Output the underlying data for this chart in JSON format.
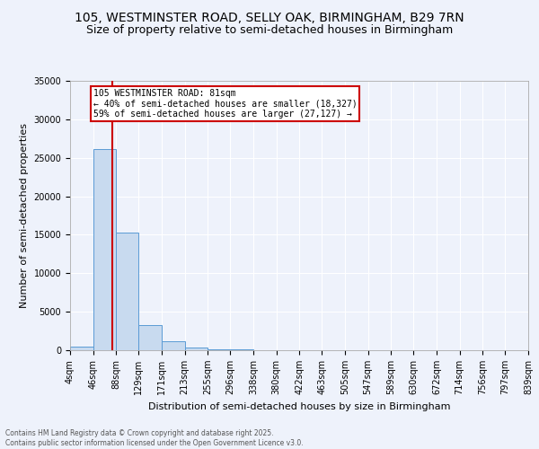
{
  "title_line1": "105, WESTMINSTER ROAD, SELLY OAK, BIRMINGHAM, B29 7RN",
  "title_line2": "Size of property relative to semi-detached houses in Birmingham",
  "xlabel": "Distribution of semi-detached houses by size in Birmingham",
  "ylabel": "Number of semi-detached properties",
  "bin_labels": [
    "4sqm",
    "46sqm",
    "88sqm",
    "129sqm",
    "171sqm",
    "213sqm",
    "255sqm",
    "296sqm",
    "338sqm",
    "380sqm",
    "422sqm",
    "463sqm",
    "505sqm",
    "547sqm",
    "589sqm",
    "630sqm",
    "672sqm",
    "714sqm",
    "756sqm",
    "797sqm",
    "839sqm"
  ],
  "bin_edges": [
    4,
    46,
    88,
    129,
    171,
    213,
    255,
    296,
    338,
    380,
    422,
    463,
    505,
    547,
    589,
    630,
    672,
    714,
    756,
    797,
    839
  ],
  "bar_heights": [
    500,
    26100,
    15300,
    3300,
    1200,
    400,
    150,
    80,
    50,
    30,
    20,
    15,
    10,
    8,
    5,
    4,
    3,
    2,
    2,
    1,
    1
  ],
  "bar_color": "#c8daef",
  "bar_edge_color": "#5b9bd5",
  "property_size": 81,
  "vline_color": "#cc0000",
  "annotation_text": "105 WESTMINSTER ROAD: 81sqm\n← 40% of semi-detached houses are smaller (18,327)\n59% of semi-detached houses are larger (27,127) →",
  "ylim": [
    0,
    35000
  ],
  "yticks": [
    0,
    5000,
    10000,
    15000,
    20000,
    25000,
    30000,
    35000
  ],
  "background_color": "#eef2fb",
  "grid_color": "#ffffff",
  "footnote": "Contains HM Land Registry data © Crown copyright and database right 2025.\nContains public sector information licensed under the Open Government Licence v3.0.",
  "title_fontsize": 10,
  "subtitle_fontsize": 9,
  "annot_fontsize": 7,
  "axis_label_fontsize": 8,
  "tick_fontsize": 7,
  "footnote_fontsize": 5.5
}
